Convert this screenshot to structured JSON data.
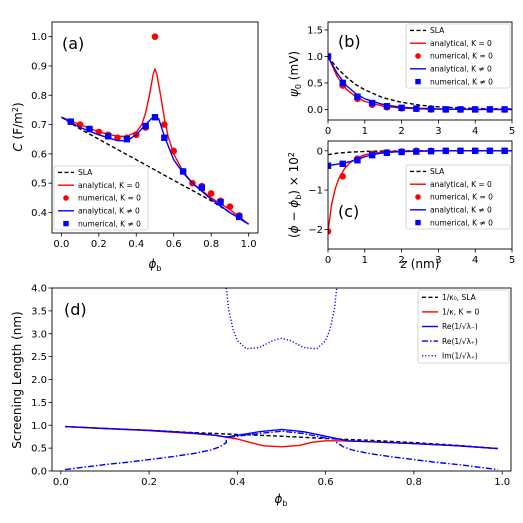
{
  "chart_data": [
    {
      "id": "a",
      "panel_label": "(a)",
      "type": "line",
      "xlabel": "ϕ_b",
      "ylabel": "C (F/m²)",
      "xlim": [
        -0.05,
        1.05
      ],
      "ylim": [
        0.33,
        1.05
      ],
      "xticks": [
        "0.0",
        "0.2",
        "0.4",
        "0.6",
        "0.8",
        "1.0"
      ],
      "xtick_values": [
        0.0,
        0.2,
        0.4,
        0.6,
        0.8,
        1.0
      ],
      "yticks": [
        "0.4",
        "0.5",
        "0.6",
        "0.7",
        "0.8",
        "0.9",
        "1.0"
      ],
      "ytick_values": [
        0.4,
        0.5,
        0.6,
        0.7,
        0.8,
        0.9,
        1.0
      ],
      "legend_position": "lower-left",
      "legend": [
        "SLA",
        "analytical, K = 0",
        "numerical, K = 0",
        "analytical, K ≠ 0",
        "numerical, K ≠ 0"
      ],
      "series": [
        {
          "name": "SLA",
          "style": "dashed",
          "color": "#000000",
          "x": [
            0.0,
            0.1,
            0.2,
            0.3,
            0.4,
            0.5,
            0.6,
            0.7,
            0.8,
            0.9,
            1.0
          ],
          "y": [
            0.725,
            0.685,
            0.65,
            0.615,
            0.58,
            0.545,
            0.51,
            0.475,
            0.44,
            0.4,
            0.36
          ]
        },
        {
          "name": "analytical, K = 0",
          "style": "solid",
          "color": "#ff0000",
          "x": [
            0.0,
            0.1,
            0.2,
            0.3,
            0.35,
            0.4,
            0.43,
            0.45,
            0.47,
            0.49,
            0.5,
            0.51,
            0.53,
            0.55,
            0.57,
            0.6,
            0.65,
            0.7,
            0.8,
            0.9,
            1.0
          ],
          "y": [
            0.725,
            0.7,
            0.675,
            0.66,
            0.66,
            0.675,
            0.7,
            0.74,
            0.8,
            0.87,
            0.89,
            0.87,
            0.8,
            0.72,
            0.66,
            0.6,
            0.54,
            0.5,
            0.45,
            0.41,
            0.36
          ]
        },
        {
          "name": "numerical, K = 0",
          "style": "marker-circle",
          "color": "#ff0000",
          "x": [
            0.05,
            0.1,
            0.15,
            0.2,
            0.25,
            0.3,
            0.35,
            0.4,
            0.45,
            0.5,
            0.55,
            0.6,
            0.65,
            0.7,
            0.75,
            0.8,
            0.85,
            0.9,
            0.95
          ],
          "y": [
            0.71,
            0.7,
            0.685,
            0.675,
            0.665,
            0.655,
            0.655,
            0.665,
            0.69,
            1.0,
            0.7,
            0.61,
            0.54,
            0.5,
            0.49,
            0.465,
            0.44,
            0.42,
            0.39
          ]
        },
        {
          "name": "analytical, K ≠ 0",
          "style": "solid",
          "color": "#0000ff",
          "x": [
            0.0,
            0.1,
            0.2,
            0.3,
            0.35,
            0.4,
            0.45,
            0.48,
            0.5,
            0.52,
            0.55,
            0.6,
            0.65,
            0.7,
            0.8,
            0.9,
            1.0
          ],
          "y": [
            0.725,
            0.69,
            0.665,
            0.645,
            0.645,
            0.665,
            0.7,
            0.72,
            0.725,
            0.72,
            0.66,
            0.58,
            0.535,
            0.5,
            0.445,
            0.4,
            0.36
          ]
        },
        {
          "name": "numerical, K ≠ 0",
          "style": "marker-square",
          "color": "#0000ff",
          "x": [
            0.05,
            0.15,
            0.25,
            0.35,
            0.45,
            0.5,
            0.55,
            0.65,
            0.75,
            0.85,
            0.95
          ],
          "y": [
            0.71,
            0.685,
            0.66,
            0.65,
            0.695,
            0.725,
            0.655,
            0.54,
            0.485,
            0.435,
            0.385
          ]
        }
      ]
    },
    {
      "id": "b",
      "panel_label": "(b)",
      "type": "line",
      "xlabel": "",
      "ylabel": "ψ₀ (mV)",
      "xlim": [
        0,
        5
      ],
      "ylim": [
        -0.2,
        1.65
      ],
      "xticks": [
        "0",
        "1",
        "2",
        "3",
        "4",
        "5"
      ],
      "xtick_values": [
        0,
        1,
        2,
        3,
        4,
        5
      ],
      "yticks": [
        "0.0",
        "0.5",
        "1.0",
        "1.5"
      ],
      "ytick_values": [
        0.0,
        0.5,
        1.0,
        1.5
      ],
      "legend_position": "upper-right",
      "legend": [
        "SLA",
        "analytical, K = 0",
        "numerical, K = 0",
        "analytical, K ≠ 0",
        "numerical, K ≠ 0"
      ],
      "series": [
        {
          "name": "SLA",
          "style": "dashed",
          "color": "#000000",
          "x": [
            0,
            0.25,
            0.5,
            0.75,
            1,
            1.5,
            2,
            2.5,
            3,
            3.5,
            4,
            4.5,
            5
          ],
          "y": [
            1.0,
            0.78,
            0.61,
            0.47,
            0.37,
            0.22,
            0.135,
            0.08,
            0.05,
            0.03,
            0.018,
            0.011,
            0.007
          ]
        },
        {
          "name": "analytical, K = 0",
          "style": "solid",
          "color": "#ff0000",
          "x": [
            0,
            0.25,
            0.5,
            0.75,
            1,
            1.5,
            2,
            2.5,
            3,
            3.5,
            4,
            4.5,
            5
          ],
          "y": [
            1.0,
            0.62,
            0.38,
            0.24,
            0.15,
            0.06,
            0.025,
            0.01,
            0.004,
            0.002,
            0.0,
            0.0,
            0.0
          ]
        },
        {
          "name": "numerical, K = 0",
          "style": "marker-circle",
          "color": "#ff0000",
          "x": [
            0,
            0.4,
            0.8,
            1.2,
            1.6,
            2.0,
            2.4,
            2.8,
            3.2,
            3.6,
            4.0,
            4.4,
            4.8
          ],
          "y": [
            1.0,
            0.45,
            0.2,
            0.09,
            0.04,
            0.02,
            0.01,
            0.0,
            0.0,
            0.0,
            0.0,
            0.0,
            0.0
          ]
        },
        {
          "name": "analytical, K ≠ 0",
          "style": "solid",
          "color": "#0000ff",
          "x": [
            0,
            0.25,
            0.5,
            0.75,
            1,
            1.5,
            2,
            2.5,
            3,
            3.5,
            4,
            4.5,
            5
          ],
          "y": [
            1.0,
            0.68,
            0.45,
            0.3,
            0.2,
            0.09,
            0.04,
            0.02,
            0.01,
            0.004,
            0.0,
            0.0,
            0.0
          ]
        },
        {
          "name": "numerical, K ≠ 0",
          "style": "marker-square",
          "color": "#0000ff",
          "x": [
            0,
            0.4,
            0.8,
            1.2,
            1.6,
            2.0,
            2.4,
            2.8,
            3.2,
            3.6,
            4.0,
            4.4,
            4.8
          ],
          "y": [
            1.0,
            0.5,
            0.24,
            0.12,
            0.06,
            0.03,
            0.015,
            0.005,
            0.0,
            0.0,
            0.0,
            0.0,
            0.0
          ]
        }
      ]
    },
    {
      "id": "c",
      "panel_label": "(c)",
      "type": "line",
      "xlabel": "z (nm)",
      "ylabel": "(ϕ − ϕ_b) × 10²",
      "xlim": [
        0,
        5
      ],
      "ylim": [
        -2.5,
        0.25
      ],
      "xticks": [
        "0",
        "1",
        "2",
        "3",
        "4",
        "5"
      ],
      "xtick_values": [
        0,
        1,
        2,
        3,
        4,
        5
      ],
      "yticks": [
        "−2",
        "−1",
        "0"
      ],
      "ytick_values": [
        -2,
        -1,
        0
      ],
      "legend_position": "lower-right",
      "legend": [
        "SLA",
        "analytical, K = 0",
        "numerical, K = 0",
        "analytical, K ≠ 0",
        "numerical, K ≠ 0"
      ],
      "series": [
        {
          "name": "SLA",
          "style": "dashed",
          "color": "#000000",
          "x": [
            0,
            0.25,
            0.5,
            1,
            1.5,
            2,
            3,
            4,
            5
          ],
          "y": [
            -0.1,
            -0.06,
            -0.04,
            -0.015,
            -0.006,
            -0.003,
            0.0,
            0.0,
            0.0
          ]
        },
        {
          "name": "analytical, K = 0",
          "style": "solid",
          "color": "#ff0000",
          "x": [
            0,
            0.1,
            0.2,
            0.3,
            0.45,
            0.6,
            0.8,
            1.0,
            1.3,
            1.6,
            2.0,
            3.0,
            4.0,
            5.0
          ],
          "y": [
            -2.05,
            -1.35,
            -0.95,
            -0.7,
            -0.45,
            -0.3,
            -0.18,
            -0.1,
            -0.05,
            -0.02,
            -0.01,
            0.0,
            0.0,
            0.0
          ]
        },
        {
          "name": "numerical, K = 0",
          "style": "marker-circle",
          "color": "#ff0000",
          "x": [
            0,
            0.4,
            0.8,
            1.2,
            1.6,
            2.0,
            2.4,
            2.8,
            3.2,
            3.6,
            4.0,
            4.4,
            4.8
          ],
          "y": [
            -2.05,
            -0.65,
            -0.2,
            -0.08,
            -0.04,
            -0.02,
            0.0,
            0.0,
            0.0,
            0.0,
            0.0,
            0.0,
            0.0
          ]
        },
        {
          "name": "analytical, K ≠ 0",
          "style": "solid",
          "color": "#0000ff",
          "x": [
            0,
            0.25,
            0.5,
            0.8,
            1.0,
            1.3,
            1.6,
            2.0,
            2.5,
            3.0,
            4.0,
            5.0
          ],
          "y": [
            -0.38,
            -0.34,
            -0.3,
            -0.22,
            -0.15,
            -0.08,
            -0.04,
            -0.02,
            -0.01,
            0.0,
            0.0,
            0.0
          ]
        },
        {
          "name": "numerical, K ≠ 0",
          "style": "marker-square",
          "color": "#0000ff",
          "x": [
            0,
            0.4,
            0.8,
            1.2,
            1.6,
            2.0,
            2.4,
            2.8,
            3.2,
            3.6,
            4.0,
            4.4,
            4.8
          ],
          "y": [
            -0.38,
            -0.33,
            -0.24,
            -0.11,
            -0.05,
            -0.03,
            -0.02,
            -0.01,
            0.0,
            0.0,
            0.0,
            0.0,
            0.0
          ]
        }
      ]
    },
    {
      "id": "d",
      "panel_label": "(d)",
      "type": "line",
      "xlabel": "ϕ_b",
      "ylabel": "Screening Length (nm)",
      "xlim": [
        -0.02,
        1.02
      ],
      "ylim": [
        0.0,
        4.0
      ],
      "xticks": [
        "0.0",
        "0.2",
        "0.4",
        "0.6",
        "0.8",
        "1.0"
      ],
      "xtick_values": [
        0.0,
        0.2,
        0.4,
        0.6,
        0.8,
        1.0
      ],
      "yticks": [
        "0.0",
        "0.5",
        "1.0",
        "1.5",
        "2.0",
        "2.5",
        "3.0",
        "3.5",
        "4.0"
      ],
      "ytick_values": [
        0.0,
        0.5,
        1.0,
        1.5,
        2.0,
        2.5,
        3.0,
        3.5,
        4.0
      ],
      "legend_position": "upper-right",
      "legend": [
        "1/κ₀, SLA",
        "1/κ, K = 0",
        "Re(1/√λ₋)",
        "Re(1/√λ₊)",
        "Im(1/√λ₊)"
      ],
      "series": [
        {
          "name": "1/κ₀, SLA",
          "style": "dashed",
          "color": "#000000",
          "x": [
            0.01,
            0.1,
            0.2,
            0.3,
            0.4,
            0.5,
            0.6,
            0.7,
            0.8,
            0.9,
            0.99
          ],
          "y": [
            0.97,
            0.93,
            0.89,
            0.84,
            0.8,
            0.76,
            0.71,
            0.67,
            0.62,
            0.56,
            0.49
          ]
        },
        {
          "name": "1/κ, K = 0",
          "style": "solid",
          "color": "#ff0000",
          "x": [
            0.01,
            0.1,
            0.2,
            0.3,
            0.35,
            0.4,
            0.43,
            0.46,
            0.5,
            0.54,
            0.57,
            0.6,
            0.63,
            0.7,
            0.8,
            0.9,
            0.99
          ],
          "y": [
            0.97,
            0.93,
            0.88,
            0.82,
            0.78,
            0.7,
            0.62,
            0.55,
            0.53,
            0.56,
            0.63,
            0.66,
            0.66,
            0.64,
            0.6,
            0.55,
            0.49
          ]
        },
        {
          "name": "Re(1/√λ₋)",
          "style": "solid",
          "color": "#0000ff",
          "x": [
            0.01,
            0.1,
            0.2,
            0.3,
            0.35,
            0.375,
            0.4,
            0.45,
            0.5,
            0.55,
            0.6,
            0.625,
            0.65,
            0.7,
            0.8,
            0.9,
            0.99
          ],
          "y": [
            0.97,
            0.93,
            0.89,
            0.83,
            0.78,
            0.74,
            0.78,
            0.86,
            0.91,
            0.86,
            0.76,
            0.71,
            0.66,
            0.64,
            0.6,
            0.55,
            0.49
          ]
        },
        {
          "name": "Re(1/√λ₊)",
          "style": "dashdot",
          "color": "#0000ff",
          "x": [
            0.01,
            0.05,
            0.1,
            0.15,
            0.2,
            0.25,
            0.3,
            0.34,
            0.36,
            0.375,
            0.375,
            0.4,
            0.45,
            0.5,
            0.55,
            0.6,
            0.625,
            0.625,
            0.64,
            0.66,
            0.7,
            0.75,
            0.8,
            0.85,
            0.9,
            0.95,
            0.99
          ],
          "y": [
            0.03,
            0.08,
            0.14,
            0.19,
            0.25,
            0.31,
            0.38,
            0.46,
            0.53,
            0.62,
            0.74,
            0.76,
            0.82,
            0.87,
            0.82,
            0.72,
            0.7,
            0.62,
            0.53,
            0.46,
            0.38,
            0.31,
            0.25,
            0.19,
            0.14,
            0.08,
            0.03
          ]
        },
        {
          "name": "Im(1/√λ₊)",
          "style": "dotted",
          "color": "#0000ff",
          "x": [
            0.375,
            0.38,
            0.39,
            0.4,
            0.42,
            0.45,
            0.48,
            0.5,
            0.52,
            0.55,
            0.58,
            0.6,
            0.61,
            0.62,
            0.625
          ],
          "y": [
            4.0,
            3.55,
            3.1,
            2.85,
            2.67,
            2.7,
            2.85,
            2.9,
            2.85,
            2.7,
            2.67,
            2.85,
            3.1,
            3.55,
            4.0
          ]
        }
      ]
    }
  ]
}
